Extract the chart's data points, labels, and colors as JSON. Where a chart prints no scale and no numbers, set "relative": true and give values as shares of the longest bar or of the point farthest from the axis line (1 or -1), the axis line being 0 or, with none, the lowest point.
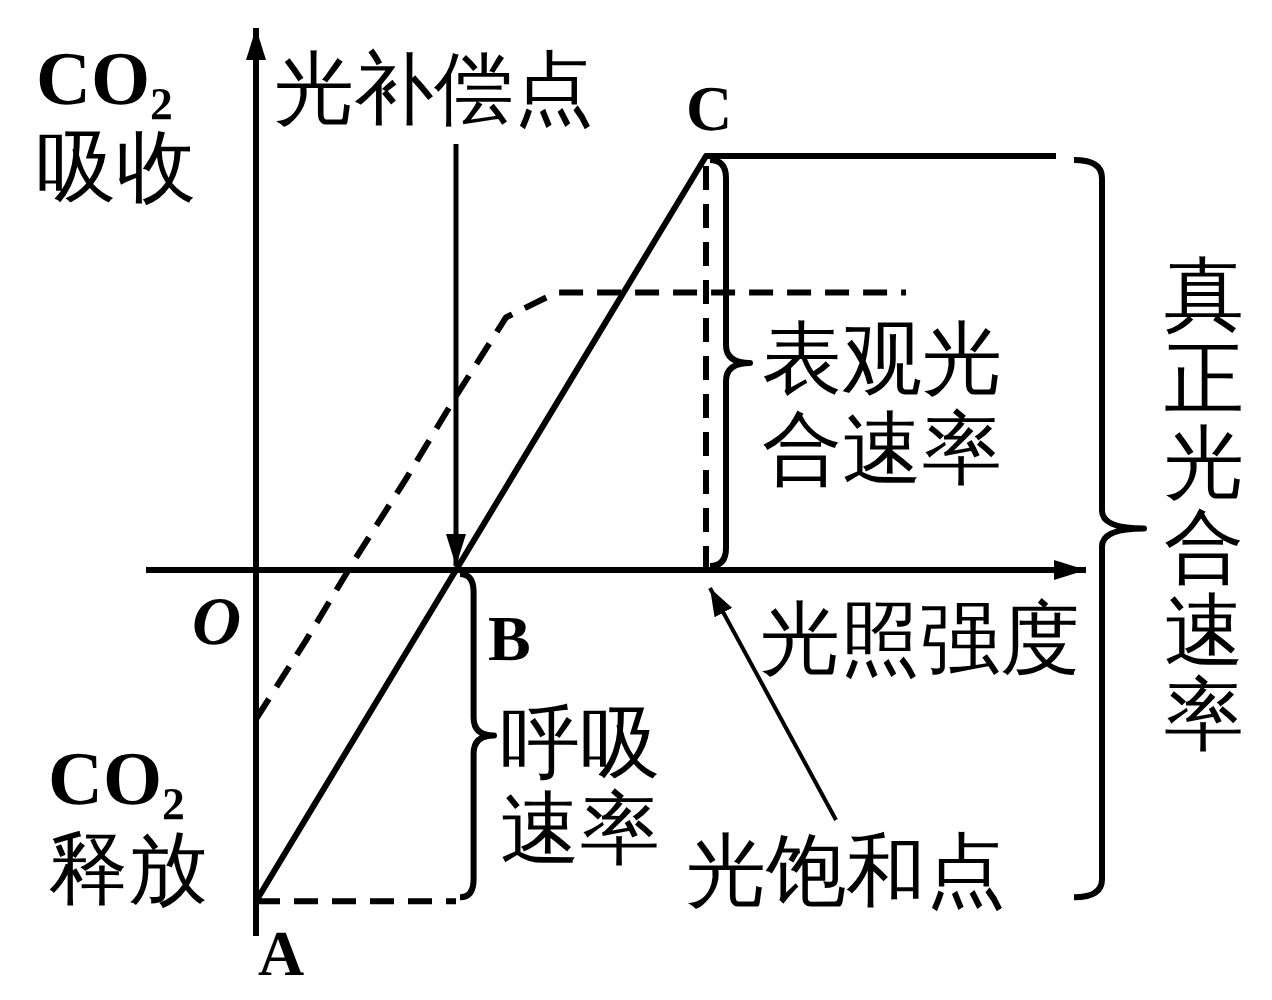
{
  "chart_data": {
    "type": "line",
    "relative": true,
    "categories": [
      null,
      null,
      null,
      null,
      null,
      null,
      null,
      null,
      null,
      null,
      null,
      null,
      null,
      null,
      null,
      null,
      null
    ],
    "xlabel": "光照强度",
    "series": [
      {
        "color": "#000000",
        "line_style": "solid",
        "values": [
          -0.8,
          -0.6,
          -0.4,
          -0.2,
          0,
          0.2,
          0.4,
          0.6,
          0.8,
          1,
          1,
          1,
          1,
          1,
          1,
          1,
          1
        ]
      },
      {
        "color": "#000000",
        "line_style": "dashed",
        "values": [
          -0.36,
          -0.17,
          0.03,
          0.22,
          0.42,
          0.61,
          0.67,
          0.67,
          0.67,
          0.67,
          0.67,
          0.67,
          0.67,
          0.67,
          null,
          null,
          null
        ]
      },
      {
        "color": "#000000",
        "line_style": "dashed",
        "values": [
          -0.8,
          -0.8,
          -0.8,
          -0.8,
          -0.8,
          null,
          null,
          null,
          null,
          null,
          null,
          null,
          null,
          null,
          null,
          null,
          null
        ]
      }
    ],
    "annotations": [
      "CO₂吸收",
      "CO₂释放",
      "O",
      {
        "text": "A",
        "y": -0.8
      },
      "B",
      {
        "text": "C",
        "y": 1
      },
      "光补偿点",
      "光饱和点",
      "呼吸速率",
      "表观光合速率",
      "真正光合速率"
    ]
  }
}
